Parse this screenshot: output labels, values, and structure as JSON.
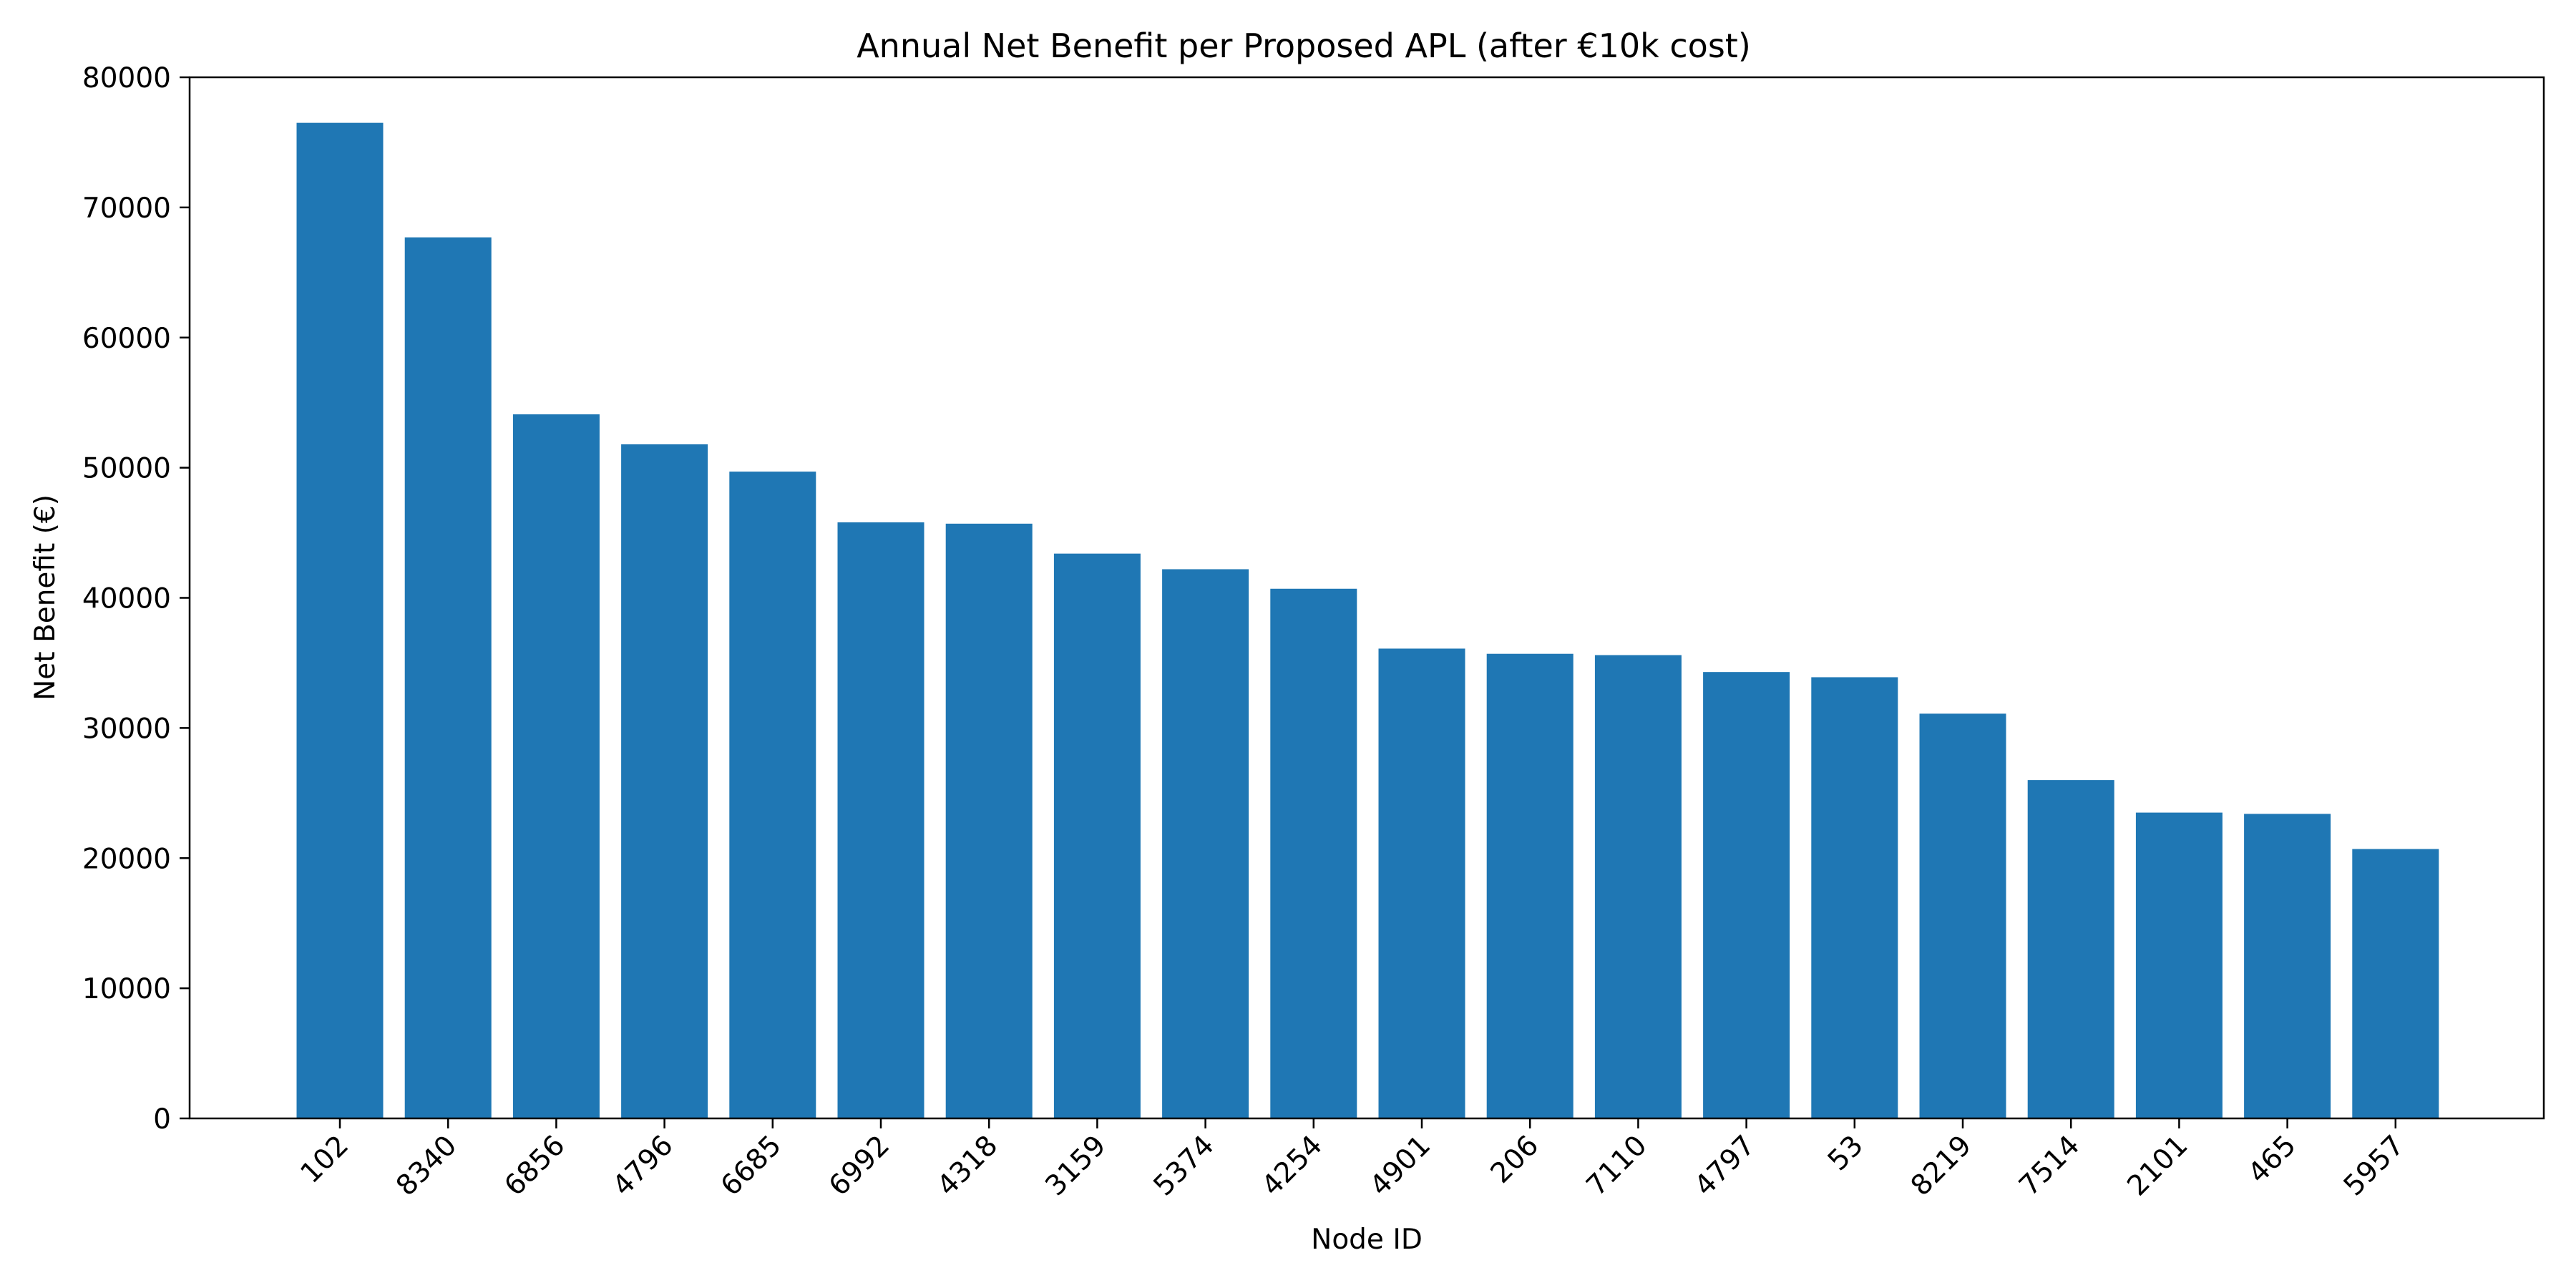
{
  "chart_data": {
    "type": "bar",
    "title": "Annual Net Benefit per Proposed APL (after €10k cost)",
    "xlabel": "Node ID",
    "ylabel": "Net Benefit (€)",
    "categories": [
      "102",
      "8340",
      "6856",
      "4796",
      "6685",
      "6992",
      "4318",
      "3159",
      "5374",
      "4254",
      "4901",
      "206",
      "7110",
      "4797",
      "53",
      "8219",
      "7514",
      "2101",
      "465",
      "5957"
    ],
    "values": [
      76500,
      67700,
      54100,
      51800,
      49700,
      45800,
      45700,
      43400,
      42200,
      40700,
      36100,
      35700,
      35600,
      34300,
      33900,
      31100,
      26000,
      23500,
      23400,
      20700
    ],
    "ylim": [
      0,
      80000
    ],
    "yticks": [
      0,
      10000,
      20000,
      30000,
      40000,
      50000,
      60000,
      70000,
      80000
    ],
    "ytick_labels": [
      "0",
      "10000",
      "20000",
      "30000",
      "40000",
      "50000",
      "60000",
      "70000",
      "80000"
    ],
    "bar_color": "#1f77b4",
    "grid": false,
    "legend": "none"
  }
}
